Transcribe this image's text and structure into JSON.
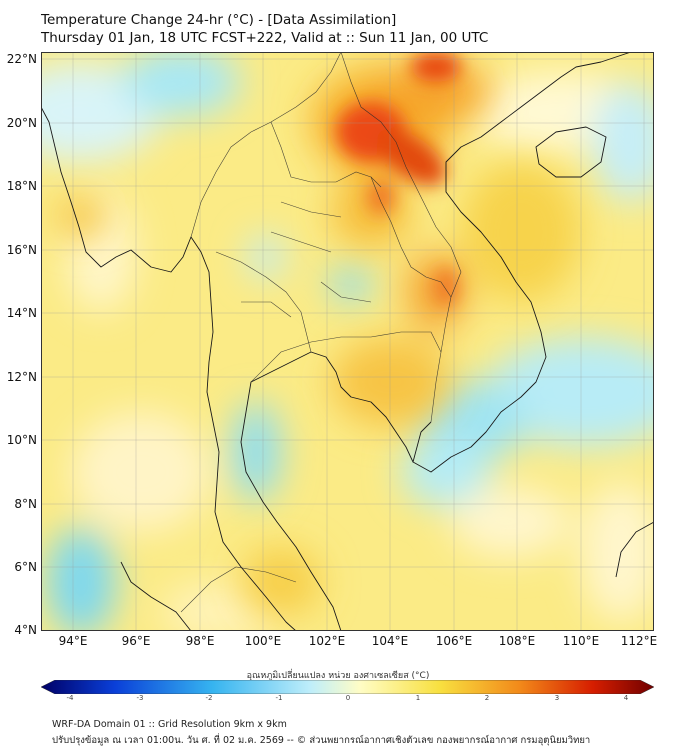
{
  "title": {
    "line1": "Temperature Change 24-hr (°C) - [Data Assimilation]",
    "line2": "Thursday 01 Jan, 18 UTC FCST+222, Valid at :: Sun 11 Jan, 00 UTC"
  },
  "axes": {
    "lat_labels": [
      "22°N",
      "20°N",
      "18°N",
      "16°N",
      "14°N",
      "12°N",
      "10°N",
      "8°N",
      "6°N",
      "4°N"
    ],
    "lon_labels": [
      "94°E",
      "96°E",
      "98°E",
      "100°E",
      "102°E",
      "104°E",
      "106°E",
      "108°E",
      "110°E",
      "112°E"
    ],
    "lat_range": [
      4,
      22.2
    ],
    "lon_range": [
      93,
      112.3
    ]
  },
  "colorbar": {
    "title": "อุณหภูมิเปลี่ยนแปลง หน่วย องศาเซลเซียส (°C)",
    "ticks": [
      "-4",
      "-3",
      "-2",
      "-1",
      "0",
      "1",
      "2",
      "3",
      "4"
    ],
    "range": [
      -4,
      4
    ],
    "colors": [
      "#000066",
      "#0a3fd8",
      "#36b4f0",
      "#bfeefa",
      "#fffdc6",
      "#f8e040",
      "#f28a1a",
      "#d61e00",
      "#700000"
    ]
  },
  "footer": {
    "line1": "WRF-DA Domain 01 :: Grid Resolution 9km x 9km",
    "line2": "ปรับปรุงข้อมูล ณ เวลา 01:00น. วัน ศ. ที่ 02 ม.ค. 2569 -- © ส่วนพยากรณ์อากาศเชิงตัวเลข กองพยากรณ์อากาศ กรมอุตุนิยมวิทยา"
  }
}
